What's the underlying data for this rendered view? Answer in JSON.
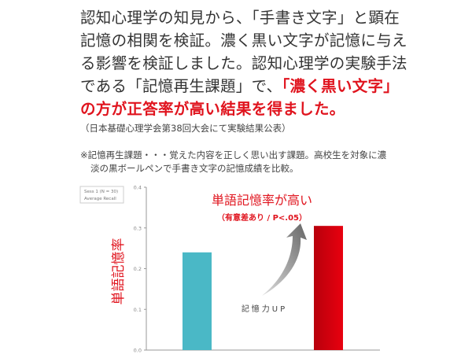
{
  "text": {
    "p1": "認知心理学の知見から、「手書き文字」と顕在記憶の相関を検証。濃く黒い文字が記憶に与える影響を検証しました。認知心理学の実験手法である「記憶再生課題」で、",
    "p1_emphasis": "「濃く黒い文字」の方が正答率が高い結果を得ました。",
    "source_note": "（日本基礎心理学会第38回大会にて実験結果公表）",
    "footnote_line1": "※記憶再生課題・・・覚えた内容を正しく思い出す課題。高校生を対象に濃",
    "footnote_line2": "淡の黒ボールペンで手書き文字の記憶成績を比較。"
  },
  "chart_data": {
    "type": "bar",
    "categories": [
      "",
      ""
    ],
    "values": [
      0.24,
      0.305
    ],
    "bar_colors": [
      "#4ab8c6",
      "#d9000f"
    ],
    "ylim": [
      0,
      0.4
    ],
    "yticks": [
      "0.0",
      "0.1",
      "0.2",
      "0.3",
      "0.4"
    ],
    "ylabel": "単語記憶率",
    "legend": [
      "Sess 1 (N = 30)",
      "Average Recall"
    ],
    "legend_position": "top-left",
    "annotation_title": "単語記憶率が高い",
    "annotation_subtitle": "（有意差あり / P<.05）",
    "arrow_label": "記憶力UP",
    "grid": false
  },
  "colors": {
    "accent": "#e0141e",
    "text": "#333333"
  }
}
